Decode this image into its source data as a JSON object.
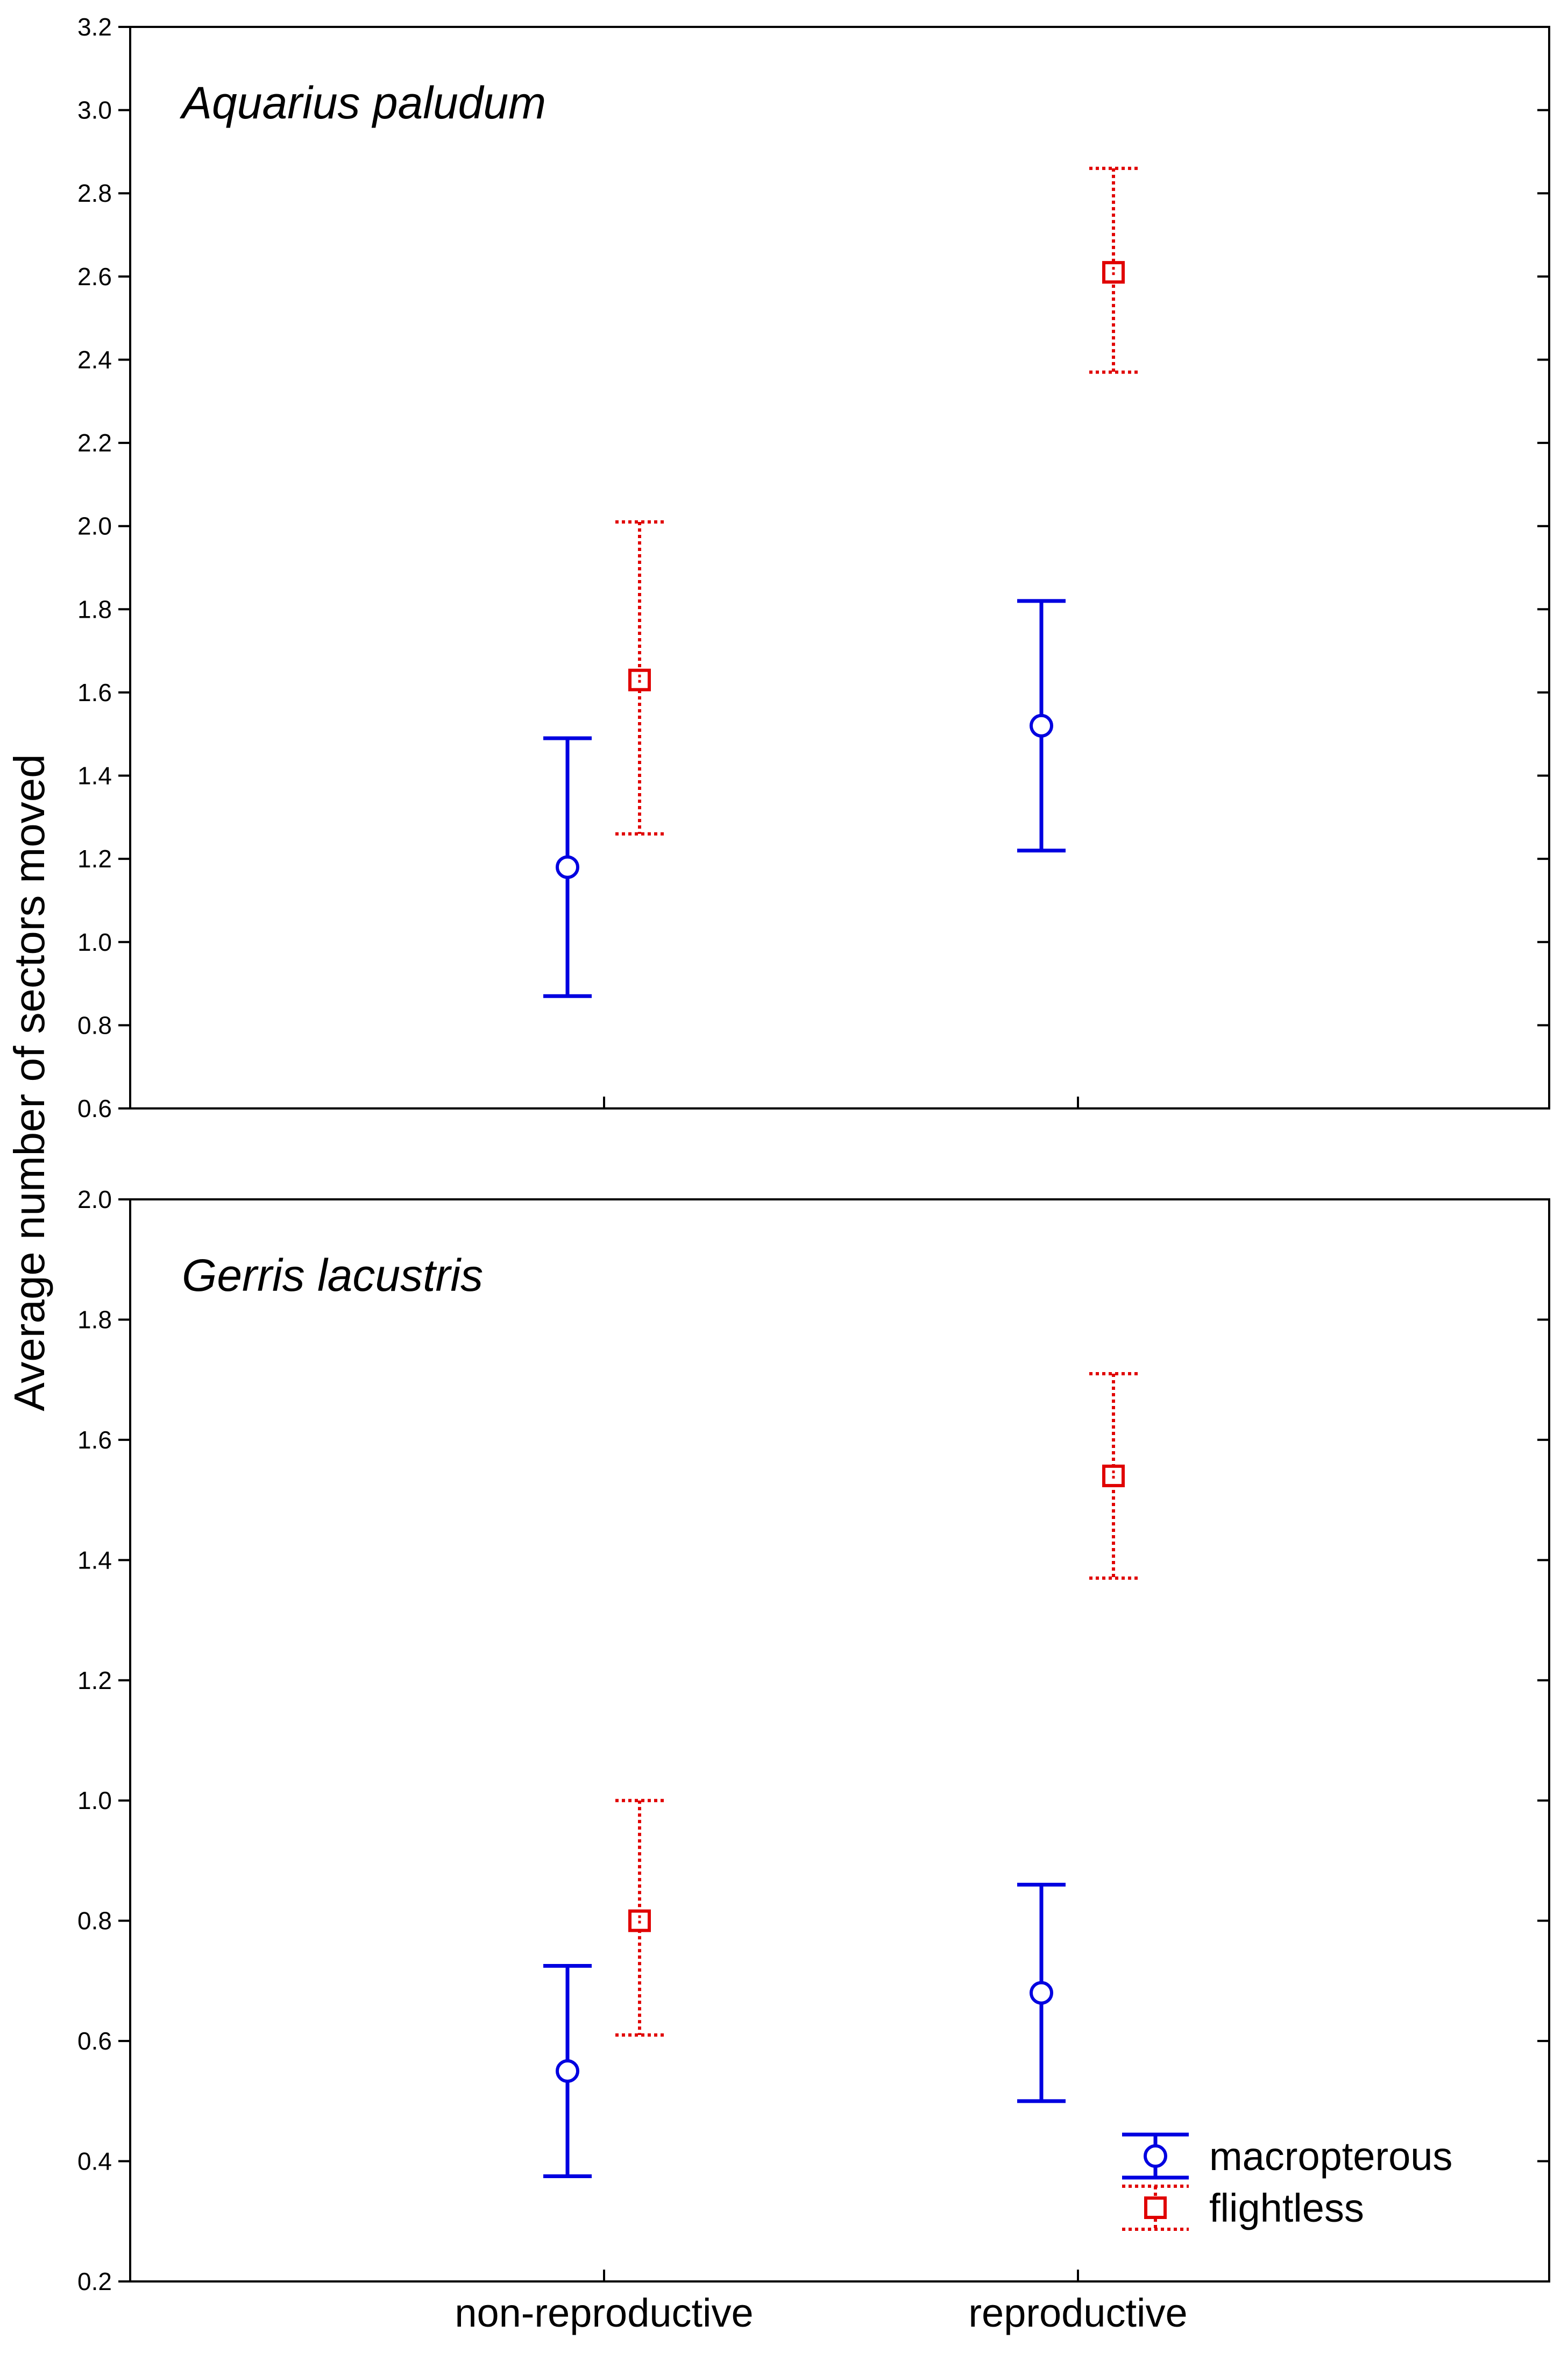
{
  "ylabel": "Average number of sectors moved",
  "categories": [
    "non-reproductive",
    "reproductive"
  ],
  "legend": [
    {
      "name": "macropterous",
      "color": "#0000e0",
      "marker": "circle",
      "line": "solid"
    },
    {
      "name": "flightless",
      "color": "#e00000",
      "marker": "square",
      "line": "dotted"
    }
  ],
  "chart_data": [
    {
      "type": "errorbar",
      "title": "Aquarius paludum",
      "ylabel": "Average number of sectors moved",
      "categories": [
        "non-reproductive",
        "reproductive"
      ],
      "ylim": [
        0.6,
        3.2
      ],
      "yticks": [
        "0.6",
        "0.8",
        "1.0",
        "1.2",
        "1.4",
        "1.6",
        "1.8",
        "2.0",
        "2.2",
        "2.4",
        "2.6",
        "2.8",
        "3.0",
        "3.2"
      ],
      "series": [
        {
          "name": "macropterous",
          "values": [
            1.18,
            1.52
          ],
          "lower": [
            0.87,
            1.22
          ],
          "upper": [
            1.49,
            1.82
          ]
        },
        {
          "name": "flightless",
          "values": [
            1.63,
            2.61
          ],
          "lower": [
            1.26,
            2.37
          ],
          "upper": [
            2.01,
            2.86
          ]
        }
      ]
    },
    {
      "type": "errorbar",
      "title": "Gerris lacustris",
      "ylabel": "Average number of sectors moved",
      "categories": [
        "non-reproductive",
        "reproductive"
      ],
      "ylim": [
        0.2,
        2.0
      ],
      "yticks": [
        "0.2",
        "0.4",
        "0.6",
        "0.8",
        "1.0",
        "1.2",
        "1.4",
        "1.6",
        "1.8",
        "2.0"
      ],
      "series": [
        {
          "name": "macropterous",
          "values": [
            0.55,
            0.68
          ],
          "lower": [
            0.375,
            0.5
          ],
          "upper": [
            0.725,
            0.86
          ]
        },
        {
          "name": "flightless",
          "values": [
            0.8,
            1.54
          ],
          "lower": [
            0.61,
            1.37
          ],
          "upper": [
            1.0,
            1.71
          ]
        }
      ]
    }
  ]
}
